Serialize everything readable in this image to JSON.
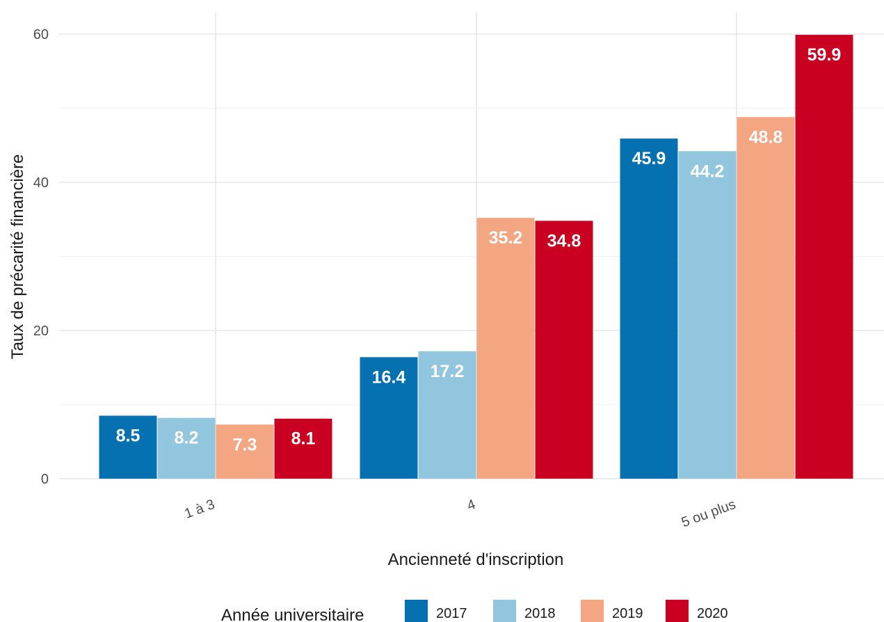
{
  "chart_data": {
    "type": "bar",
    "xlabel": "Ancienneté d'inscription",
    "ylabel": "Taux de précarité financière",
    "categories": [
      "1 à 3",
      "4",
      "5 ou plus"
    ],
    "ylim": [
      0,
      60
    ],
    "y_ticks": [
      "0",
      "20",
      "40",
      "60"
    ],
    "grid": true,
    "legend": {
      "title": "Année universitaire",
      "position": "bottom"
    },
    "series": [
      {
        "name": "2017",
        "color": "#0571b0",
        "values": [
          8.5,
          16.4,
          45.9
        ],
        "labels": [
          "8.5",
          "16.4",
          "45.9"
        ]
      },
      {
        "name": "2018",
        "color": "#92c5de",
        "values": [
          8.2,
          17.2,
          44.2
        ],
        "labels": [
          "8.2",
          "17.2",
          "44.2"
        ]
      },
      {
        "name": "2019",
        "color": "#f4a582",
        "values": [
          7.3,
          35.2,
          48.8
        ],
        "labels": [
          "7.3",
          "35.2",
          "48.8"
        ]
      },
      {
        "name": "2020",
        "color": "#ca0020",
        "values": [
          8.1,
          34.8,
          59.9
        ],
        "labels": [
          "8.1",
          "34.8",
          "59.9"
        ]
      }
    ]
  }
}
